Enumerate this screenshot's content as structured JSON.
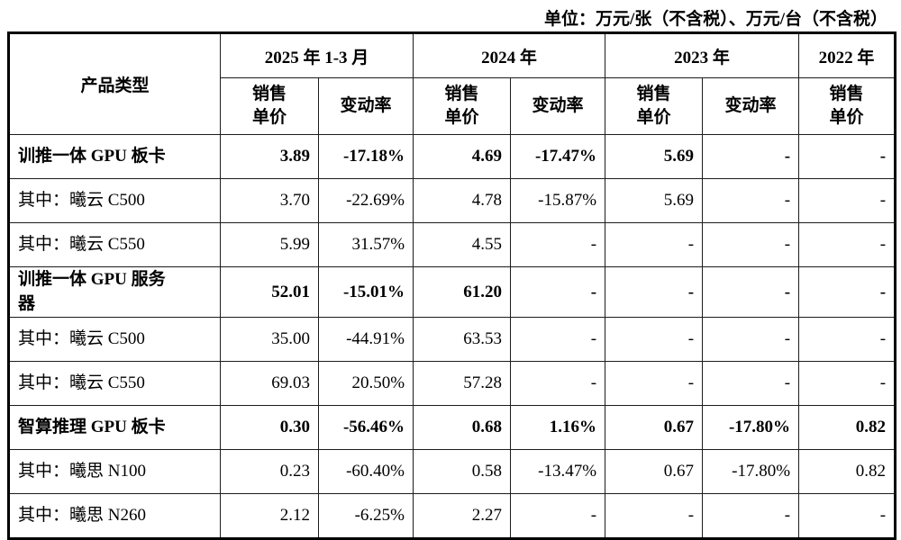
{
  "unit_note": "单位：万元/张（不含税）、万元/台（不含税）",
  "table": {
    "product_header": "产品类型",
    "col_groups": [
      {
        "label": "2025 年 1-3 月",
        "cols": [
          "销售\n单价",
          "变动率"
        ]
      },
      {
        "label": "2024 年",
        "cols": [
          "销售\n单价",
          "变动率"
        ]
      },
      {
        "label": "2023 年",
        "cols": [
          "销售\n单价",
          "变动率"
        ]
      },
      {
        "label": "2022 年",
        "cols": [
          "销售\n单价"
        ]
      }
    ],
    "rows": [
      {
        "product": "训推一体 GPU 板卡",
        "bold": true,
        "values": [
          "3.89",
          "-17.18%",
          "4.69",
          "-17.47%",
          "5.69",
          "-",
          "-"
        ]
      },
      {
        "product": "其中：曦云 C500",
        "bold": false,
        "values": [
          "3.70",
          "-22.69%",
          "4.78",
          "-15.87%",
          "5.69",
          "-",
          "-"
        ]
      },
      {
        "product": "其中：曦云 C550",
        "bold": false,
        "values": [
          "5.99",
          "31.57%",
          "4.55",
          "-",
          "-",
          "-",
          "-"
        ]
      },
      {
        "product": "训推一体 GPU 服务\n器",
        "bold": true,
        "values": [
          "52.01",
          "-15.01%",
          "61.20",
          "-",
          "-",
          "-",
          "-"
        ]
      },
      {
        "product": "其中：曦云 C500",
        "bold": false,
        "values": [
          "35.00",
          "-44.91%",
          "63.53",
          "-",
          "-",
          "-",
          "-"
        ]
      },
      {
        "product": "其中：曦云 C550",
        "bold": false,
        "values": [
          "69.03",
          "20.50%",
          "57.28",
          "-",
          "-",
          "-",
          "-"
        ]
      },
      {
        "product": "智算推理 GPU 板卡",
        "bold": true,
        "values": [
          "0.30",
          "-56.46%",
          "0.68",
          "1.16%",
          "0.67",
          "-17.80%",
          "0.82"
        ]
      },
      {
        "product": "其中：曦思 N100",
        "bold": false,
        "values": [
          "0.23",
          "-60.40%",
          "0.58",
          "-13.47%",
          "0.67",
          "-17.80%",
          "0.82"
        ]
      },
      {
        "product": "其中：曦思 N260",
        "bold": false,
        "values": [
          "2.12",
          "-6.25%",
          "2.27",
          "-",
          "-",
          "-",
          "-"
        ]
      }
    ]
  }
}
